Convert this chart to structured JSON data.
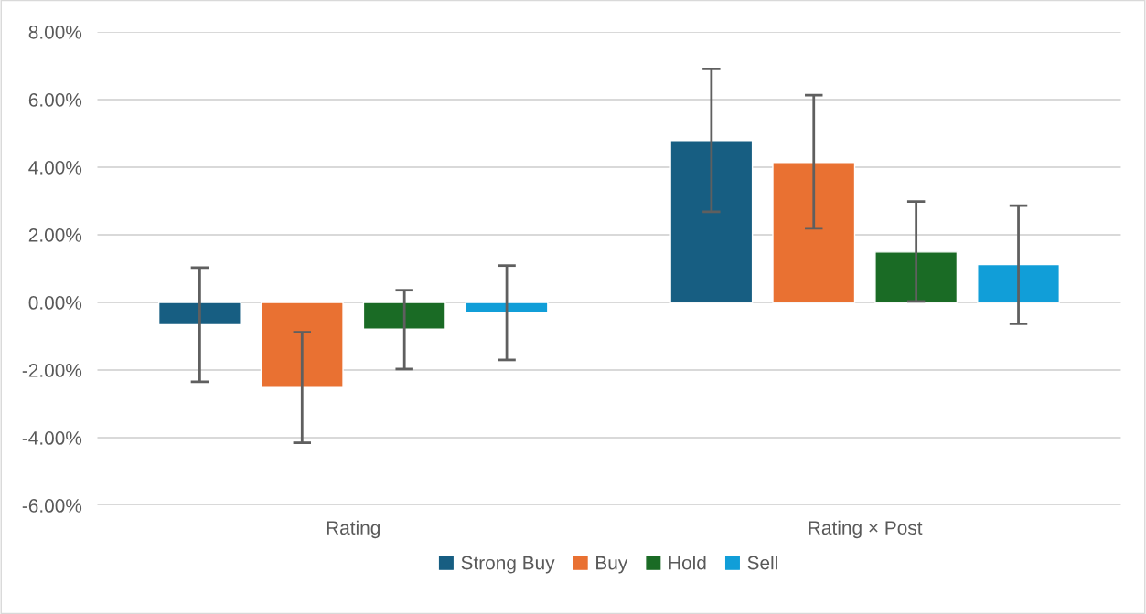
{
  "chart_data": {
    "type": "bar",
    "categories": [
      "Rating",
      "Rating × Post"
    ],
    "series": [
      {
        "name": "Strong Buy",
        "color": "#175e82",
        "values": [
          -0.66,
          4.79
        ],
        "errors": [
          [
            -2.35,
            1.03
          ],
          [
            2.68,
            6.91
          ]
        ]
      },
      {
        "name": "Buy",
        "color": "#e97132",
        "values": [
          -2.52,
          4.14
        ],
        "errors": [
          [
            -4.15,
            -0.88
          ],
          [
            2.19,
            6.13
          ]
        ]
      },
      {
        "name": "Hold",
        "color": "#1a6b25",
        "values": [
          -0.79,
          1.49
        ],
        "errors": [
          [
            -1.97,
            0.36
          ],
          [
            0.03,
            2.98
          ]
        ]
      },
      {
        "name": "Sell",
        "color": "#119ed8",
        "values": [
          -0.3,
          1.12
        ],
        "errors": [
          [
            -1.7,
            1.09
          ],
          [
            -0.63,
            2.86
          ]
        ]
      }
    ],
    "ylim": [
      -6,
      8
    ],
    "yticks": [
      {
        "value": -6,
        "label": "-6.00%"
      },
      {
        "value": -4,
        "label": "-4.00%"
      },
      {
        "value": -2,
        "label": "-2.00%"
      },
      {
        "value": 0,
        "label": "0.00%"
      },
      {
        "value": 2,
        "label": "2.00%"
      },
      {
        "value": 4,
        "label": "4.00%"
      },
      {
        "value": 6,
        "label": "6.00%"
      },
      {
        "value": 8,
        "label": "8.00%"
      }
    ],
    "grid": "y",
    "legend": "bottom"
  }
}
